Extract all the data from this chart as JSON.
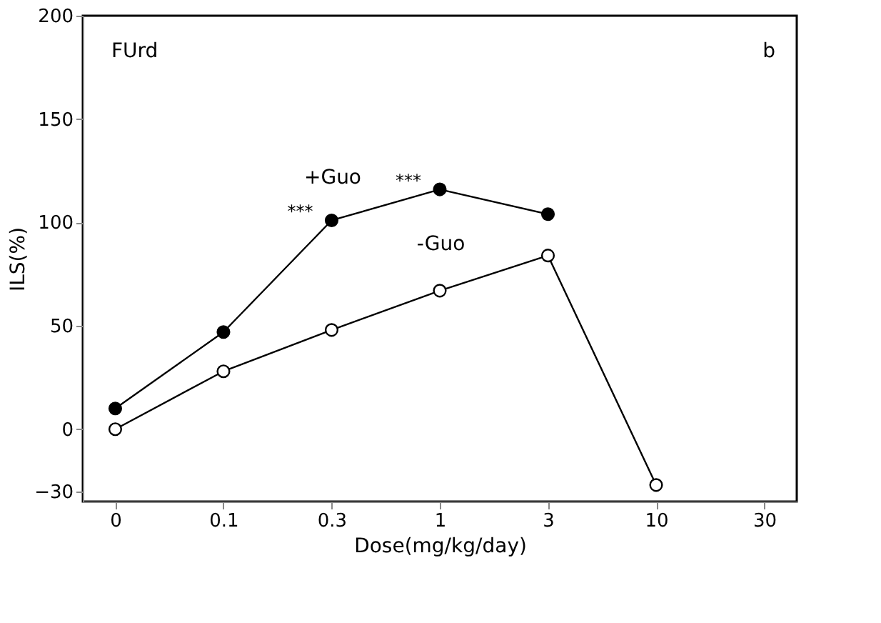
{
  "chart_data": {
    "type": "line",
    "xlabel": "Dose(mg/kg/day)",
    "ylabel": "ILS(%)",
    "categories": [
      "0",
      "0.1",
      "0.3",
      "1",
      "3",
      "10",
      "30"
    ],
    "ylim": [
      -35,
      200
    ],
    "yticks": [
      -30,
      0,
      50,
      100,
      150,
      200
    ],
    "grid": false,
    "marker": "circle",
    "line_style": "solid",
    "series": [
      {
        "name": "+Guo",
        "color": "#000000",
        "values": [
          10,
          47,
          101,
          116,
          104,
          null,
          null
        ]
      },
      {
        "name": "-Guo",
        "color": "#ffffff",
        "values": [
          0,
          28,
          48,
          67,
          84,
          -27,
          null
        ]
      }
    ],
    "annotations": [
      "FUrd",
      "b",
      {
        "text": "***",
        "x": "0.3",
        "y": 101
      },
      {
        "text": "***",
        "x": "1",
        "y": 116
      }
    ]
  }
}
